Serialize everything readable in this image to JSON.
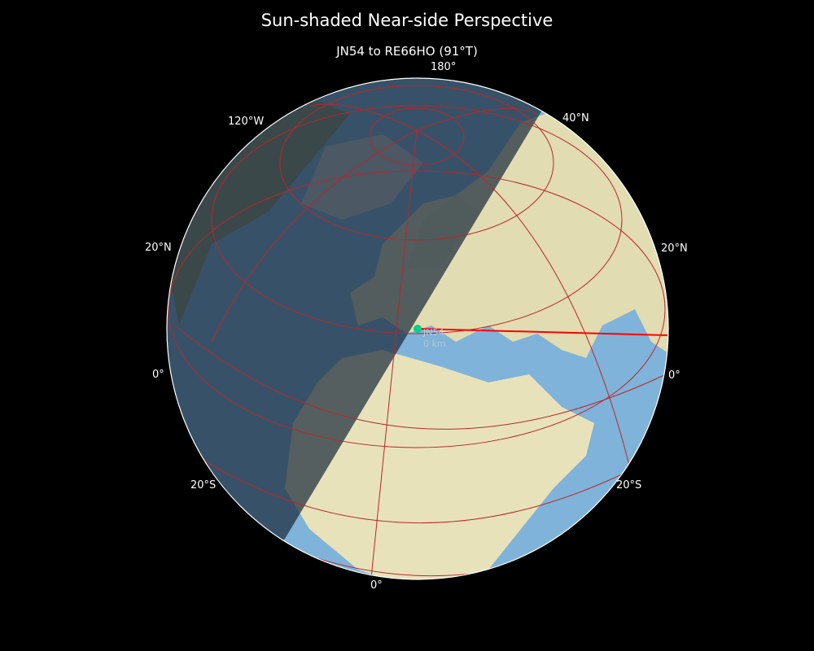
{
  "title": "Sun-shaded Near-side Perspective",
  "subtitle": "JN54 to RE66HO (91°T)",
  "graticule_labels": {
    "top": "180°",
    "top_left": "120°W",
    "top_right": "40°N",
    "left_20n": "20°N",
    "right_20n": "20°N",
    "left_0": "0°",
    "right_0": "0°",
    "left_20s": "20°S",
    "right_20s": "20°S",
    "bottom": "0°"
  },
  "marker": {
    "label": "JN54",
    "distance": "0 km",
    "color": "#00d08a"
  },
  "path": {
    "from": "JN54",
    "to": "RE66HO",
    "bearing": "91°T",
    "color": "#ff0000"
  },
  "colors": {
    "ocean": "#7fb3d9",
    "land": "#e6e0b8",
    "night_shade": "#1c2c3c",
    "graticule": "#b8272b"
  }
}
